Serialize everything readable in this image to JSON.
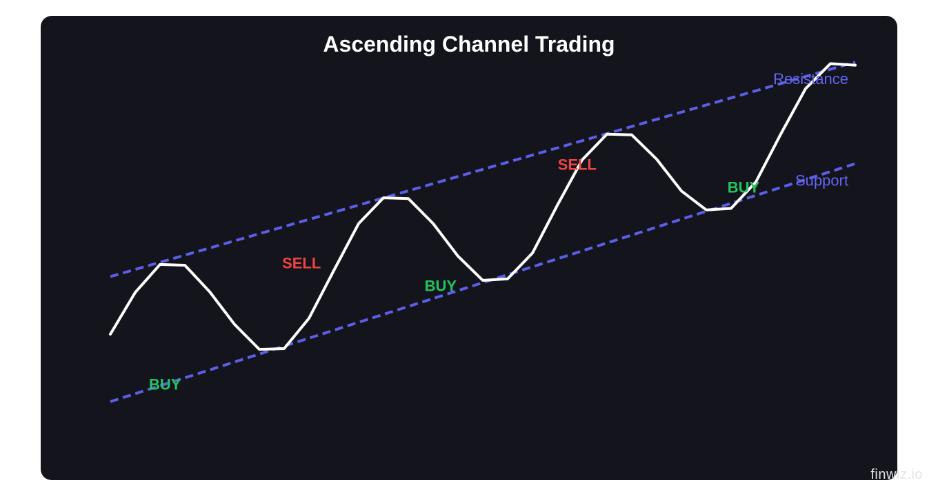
{
  "watermark": "finwiz.io",
  "colors": {
    "background": "#14141d",
    "price": "#ffffff",
    "channel": "#5b5fe8",
    "channel_label": "#6366f1",
    "buy": "#22c55e",
    "sell": "#ef4444"
  },
  "chart_data": {
    "type": "line",
    "title": "Ascending Channel Trading",
    "xlabel": "",
    "ylabel": "",
    "axes_visible": false,
    "grid": false,
    "x": [
      0,
      1,
      2,
      3,
      4,
      5,
      6,
      7,
      8,
      9,
      10,
      11,
      12,
      13,
      14,
      15,
      16,
      17,
      18,
      19,
      20,
      21,
      22,
      23,
      24,
      25,
      26,
      27,
      28,
      29,
      30
    ],
    "xlim": [
      0,
      30
    ],
    "ylim": [
      0,
      100
    ],
    "series": [
      {
        "role": "price",
        "values": [
          23.8,
          34.8,
          42.2,
          42.0,
          35.0,
          26.4,
          19.8,
          20.0,
          28.0,
          40.6,
          53.0,
          59.8,
          59.6,
          53.0,
          44.4,
          38.0,
          38.4,
          45.2,
          57.8,
          69.8,
          76.6,
          76.4,
          70.0,
          61.6,
          56.6,
          57.0,
          64.0,
          76.6,
          88.6,
          95.2,
          94.8
        ]
      },
      {
        "role": "resistance",
        "label": "Resistance",
        "x": [
          0,
          30
        ],
        "values": [
          39.0,
          95.6
        ]
      },
      {
        "role": "support",
        "label": "Support",
        "x": [
          0,
          30
        ],
        "values": [
          6.0,
          68.8
        ]
      }
    ],
    "annotations": [
      {
        "text": "BUY",
        "type": "buy",
        "x": 2.2,
        "y": 9.2
      },
      {
        "text": "SELL",
        "type": "sell",
        "x": 7.7,
        "y": 41.2
      },
      {
        "text": "BUY",
        "type": "buy",
        "x": 13.3,
        "y": 35.2
      },
      {
        "text": "SELL",
        "type": "sell",
        "x": 18.8,
        "y": 67.2
      },
      {
        "text": "BUY",
        "type": "buy",
        "x": 25.5,
        "y": 61.2
      }
    ]
  }
}
